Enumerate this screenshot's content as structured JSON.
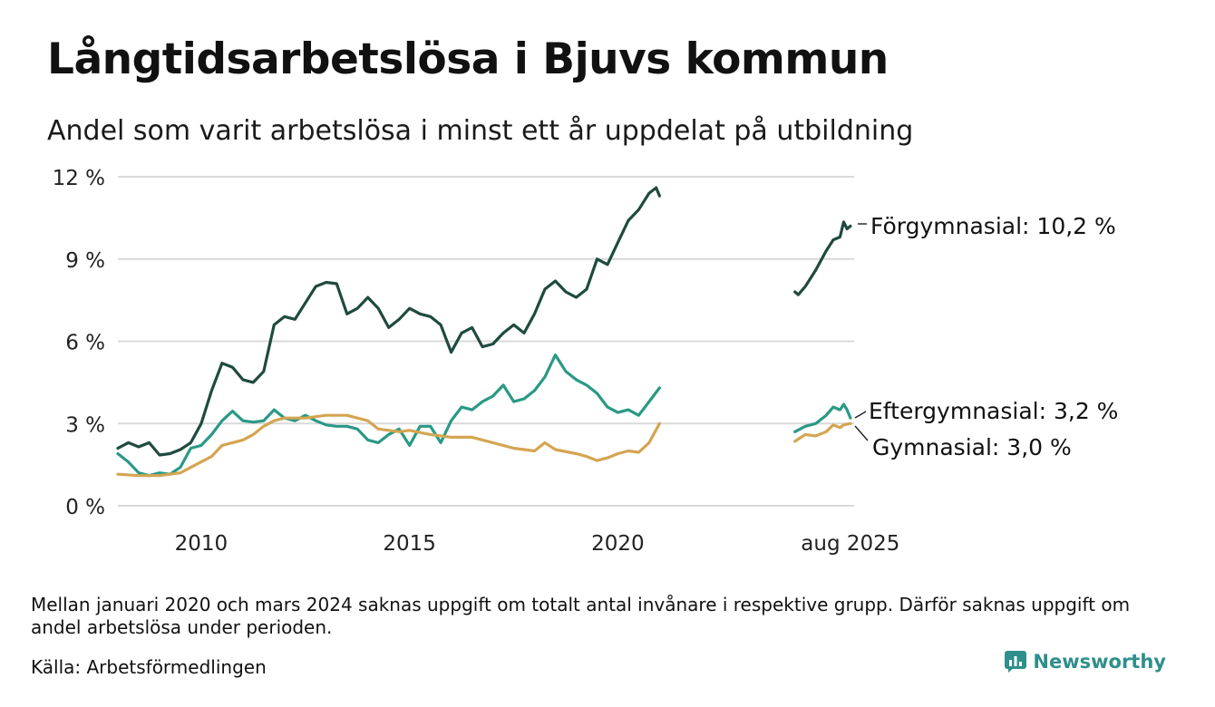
{
  "header": {
    "title": "Långtidsarbetslösa i Bjuvs kommun",
    "subtitle": "Andel som varit arbetslösa i minst ett år uppdelat på utbildning"
  },
  "footer": {
    "note": "Mellan januari 2020 och mars 2024 saknas uppgift om totalt antal invånare i respektive grupp. Därför saknas uppgift om andel arbetslösa under perioden.",
    "source": "Källa: Arbetsförmedlingen",
    "brand": "Newsworthy"
  },
  "colors": {
    "forgymnasial": "#1f4a3f",
    "eftergymnasial": "#2a9985",
    "gymnasial": "#d4a552",
    "grid": "#d9d9d9",
    "brand": "#2e8f8c"
  },
  "chart_data": {
    "type": "line",
    "grid": "horizontal",
    "ylim": [
      0,
      12
    ],
    "y_ticks": [
      0,
      3,
      6,
      9,
      12
    ],
    "y_tick_labels": [
      "0 %",
      "3 %",
      "6 %",
      "9 %",
      "12 %"
    ],
    "x_range": [
      2008.0,
      2025.67
    ],
    "x_ticks": [
      2010,
      2015,
      2020,
      2025.58
    ],
    "x_tick_labels": [
      "2010",
      "2015",
      "2020",
      "aug 2025"
    ],
    "series": [
      {
        "name": "Förgymnasial",
        "end_label": "Förgymnasial: 10,2 %",
        "color": "#1f4a3f",
        "segments": [
          [
            [
              2008.0,
              2.1
            ],
            [
              2008.25,
              2.3
            ],
            [
              2008.5,
              2.15
            ],
            [
              2008.75,
              2.3
            ],
            [
              2009.0,
              1.85
            ],
            [
              2009.25,
              1.9
            ],
            [
              2009.5,
              2.05
            ],
            [
              2009.75,
              2.3
            ],
            [
              2010.0,
              3.0
            ],
            [
              2010.25,
              4.2
            ],
            [
              2010.5,
              5.2
            ],
            [
              2010.75,
              5.05
            ],
            [
              2011.0,
              4.6
            ],
            [
              2011.25,
              4.5
            ],
            [
              2011.5,
              4.9
            ],
            [
              2011.75,
              6.6
            ],
            [
              2012.0,
              6.9
            ],
            [
              2012.25,
              6.8
            ],
            [
              2012.5,
              7.4
            ],
            [
              2012.75,
              8.0
            ],
            [
              2013.0,
              8.15
            ],
            [
              2013.25,
              8.1
            ],
            [
              2013.5,
              7.0
            ],
            [
              2013.75,
              7.2
            ],
            [
              2014.0,
              7.6
            ],
            [
              2014.25,
              7.2
            ],
            [
              2014.5,
              6.5
            ],
            [
              2014.75,
              6.8
            ],
            [
              2015.0,
              7.2
            ],
            [
              2015.25,
              7.0
            ],
            [
              2015.5,
              6.9
            ],
            [
              2015.75,
              6.6
            ],
            [
              2016.0,
              5.6
            ],
            [
              2016.25,
              6.3
            ],
            [
              2016.5,
              6.5
            ],
            [
              2016.75,
              5.8
            ],
            [
              2017.0,
              5.9
            ],
            [
              2017.25,
              6.3
            ],
            [
              2017.5,
              6.6
            ],
            [
              2017.75,
              6.3
            ],
            [
              2018.0,
              7.0
            ],
            [
              2018.25,
              7.9
            ],
            [
              2018.5,
              8.2
            ],
            [
              2018.75,
              7.8
            ],
            [
              2019.0,
              7.6
            ],
            [
              2019.25,
              7.9
            ],
            [
              2019.5,
              9.0
            ],
            [
              2019.75,
              8.8
            ],
            [
              2020.0,
              9.6
            ],
            [
              2020.25,
              10.4
            ],
            [
              2020.5,
              10.8
            ],
            [
              2020.75,
              11.4
            ],
            [
              2020.92,
              11.6
            ],
            [
              2021.0,
              11.3
            ]
          ],
          [
            [
              2024.25,
              7.8
            ],
            [
              2024.33,
              7.7
            ],
            [
              2024.5,
              8.0
            ],
            [
              2024.75,
              8.6
            ],
            [
              2025.0,
              9.3
            ],
            [
              2025.17,
              9.7
            ],
            [
              2025.33,
              9.8
            ],
            [
              2025.42,
              10.35
            ],
            [
              2025.5,
              10.1
            ],
            [
              2025.58,
              10.2
            ]
          ]
        ]
      },
      {
        "name": "Eftergymnasial",
        "end_label": "Eftergymnasial:  3,2 %",
        "color": "#2a9985",
        "segments": [
          [
            [
              2008.0,
              1.9
            ],
            [
              2008.25,
              1.6
            ],
            [
              2008.5,
              1.2
            ],
            [
              2008.75,
              1.1
            ],
            [
              2009.0,
              1.2
            ],
            [
              2009.25,
              1.15
            ],
            [
              2009.5,
              1.4
            ],
            [
              2009.75,
              2.1
            ],
            [
              2010.0,
              2.2
            ],
            [
              2010.25,
              2.6
            ],
            [
              2010.5,
              3.1
            ],
            [
              2010.75,
              3.45
            ],
            [
              2011.0,
              3.1
            ],
            [
              2011.25,
              3.05
            ],
            [
              2011.5,
              3.1
            ],
            [
              2011.75,
              3.5
            ],
            [
              2012.0,
              3.2
            ],
            [
              2012.25,
              3.1
            ],
            [
              2012.5,
              3.3
            ],
            [
              2012.75,
              3.1
            ],
            [
              2013.0,
              2.95
            ],
            [
              2013.25,
              2.9
            ],
            [
              2013.5,
              2.9
            ],
            [
              2013.75,
              2.8
            ],
            [
              2014.0,
              2.4
            ],
            [
              2014.25,
              2.3
            ],
            [
              2014.5,
              2.6
            ],
            [
              2014.75,
              2.8
            ],
            [
              2015.0,
              2.2
            ],
            [
              2015.25,
              2.9
            ],
            [
              2015.5,
              2.9
            ],
            [
              2015.75,
              2.3
            ],
            [
              2016.0,
              3.1
            ],
            [
              2016.25,
              3.6
            ],
            [
              2016.5,
              3.5
            ],
            [
              2016.75,
              3.8
            ],
            [
              2017.0,
              4.0
            ],
            [
              2017.25,
              4.4
            ],
            [
              2017.5,
              3.8
            ],
            [
              2017.75,
              3.9
            ],
            [
              2018.0,
              4.2
            ],
            [
              2018.25,
              4.7
            ],
            [
              2018.5,
              5.5
            ],
            [
              2018.75,
              4.9
            ],
            [
              2019.0,
              4.6
            ],
            [
              2019.25,
              4.4
            ],
            [
              2019.5,
              4.1
            ],
            [
              2019.75,
              3.6
            ],
            [
              2020.0,
              3.4
            ],
            [
              2020.25,
              3.5
            ],
            [
              2020.5,
              3.3
            ],
            [
              2020.75,
              3.8
            ],
            [
              2021.0,
              4.3
            ]
          ],
          [
            [
              2024.25,
              2.7
            ],
            [
              2024.5,
              2.9
            ],
            [
              2024.75,
              3.0
            ],
            [
              2025.0,
              3.3
            ],
            [
              2025.17,
              3.6
            ],
            [
              2025.33,
              3.5
            ],
            [
              2025.42,
              3.7
            ],
            [
              2025.5,
              3.5
            ],
            [
              2025.58,
              3.2
            ]
          ]
        ]
      },
      {
        "name": "Gymnasial",
        "end_label": "Gymnasial:  3,0 %",
        "color": "#d4a552",
        "segments": [
          [
            [
              2008.0,
              1.15
            ],
            [
              2008.5,
              1.1
            ],
            [
              2009.0,
              1.1
            ],
            [
              2009.5,
              1.2
            ],
            [
              2010.0,
              1.6
            ],
            [
              2010.25,
              1.8
            ],
            [
              2010.5,
              2.2
            ],
            [
              2010.75,
              2.3
            ],
            [
              2011.0,
              2.4
            ],
            [
              2011.25,
              2.6
            ],
            [
              2011.5,
              2.9
            ],
            [
              2011.75,
              3.1
            ],
            [
              2012.0,
              3.2
            ],
            [
              2012.5,
              3.2
            ],
            [
              2013.0,
              3.3
            ],
            [
              2013.5,
              3.3
            ],
            [
              2014.0,
              3.1
            ],
            [
              2014.25,
              2.8
            ],
            [
              2014.5,
              2.75
            ],
            [
              2014.75,
              2.7
            ],
            [
              2015.0,
              2.75
            ],
            [
              2015.5,
              2.6
            ],
            [
              2016.0,
              2.5
            ],
            [
              2016.5,
              2.5
            ],
            [
              2017.0,
              2.3
            ],
            [
              2017.5,
              2.1
            ],
            [
              2018.0,
              2.0
            ],
            [
              2018.25,
              2.3
            ],
            [
              2018.5,
              2.05
            ],
            [
              2019.0,
              1.9
            ],
            [
              2019.25,
              1.8
            ],
            [
              2019.5,
              1.65
            ],
            [
              2019.75,
              1.75
            ],
            [
              2020.0,
              1.9
            ],
            [
              2020.25,
              2.0
            ],
            [
              2020.5,
              1.95
            ],
            [
              2020.75,
              2.3
            ],
            [
              2021.0,
              3.0
            ]
          ],
          [
            [
              2024.25,
              2.35
            ],
            [
              2024.5,
              2.6
            ],
            [
              2024.75,
              2.55
            ],
            [
              2025.0,
              2.7
            ],
            [
              2025.17,
              2.95
            ],
            [
              2025.33,
              2.85
            ],
            [
              2025.42,
              2.95
            ],
            [
              2025.58,
              3.0
            ]
          ]
        ]
      }
    ]
  }
}
